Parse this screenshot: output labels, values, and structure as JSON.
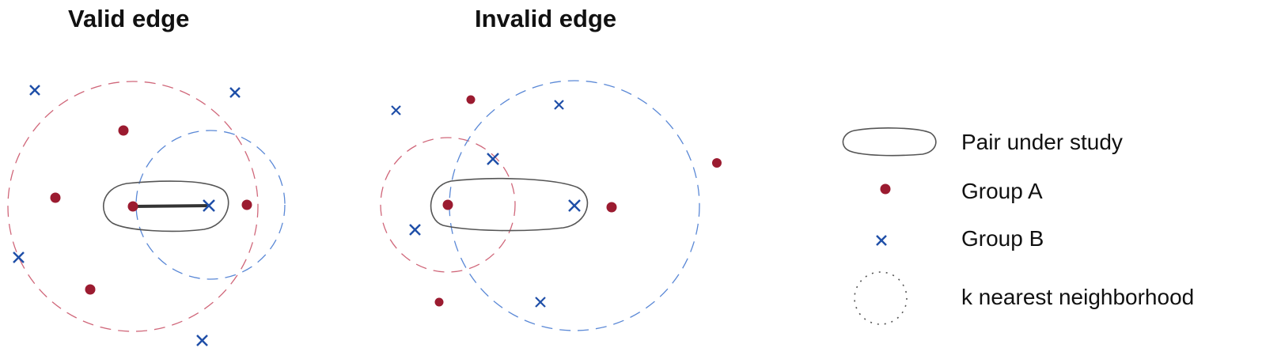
{
  "titles": {
    "valid": "Valid edge",
    "invalid": "Invalid edge"
  },
  "legend": {
    "pair": "Pair under study",
    "group_a": "Group A",
    "group_b": "Group B",
    "neighborhood": "k nearest neighborhood"
  },
  "colors": {
    "group_a": "#9b1b30",
    "group_b": "#1f4fa8",
    "pair_outline": "#555555",
    "circle_a": "#d0677a",
    "circle_b": "#5a88d6",
    "neighborhood_legend": "#555555"
  }
}
